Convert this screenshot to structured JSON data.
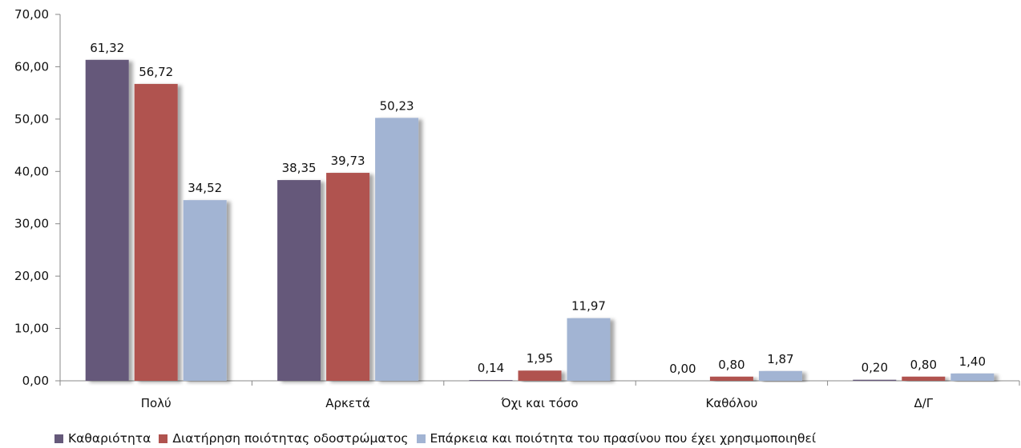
{
  "chart_data": {
    "type": "bar",
    "categories": [
      "Πολύ",
      "Αρκετά",
      "Όχι και τόσο",
      "Καθόλου",
      "Δ/Γ"
    ],
    "series": [
      {
        "name": "Καθαριότητα",
        "color": "#65597a",
        "values": [
          61.32,
          38.35,
          0.14,
          0.0,
          0.2
        ],
        "labels": [
          "61,32",
          "38,35",
          "0,14",
          "0,00",
          "0,20"
        ]
      },
      {
        "name": "Διατήρηση ποιότητας οδοστρώματος",
        "color": "#b0534f",
        "values": [
          56.72,
          39.73,
          1.95,
          0.8,
          0.8
        ],
        "labels": [
          "56,72",
          "39,73",
          "1,95",
          "0,80",
          "0,80"
        ]
      },
      {
        "name": "Επάρκεια και ποιότητα του πρασίνου που έχει χρησιμοποιηθεί",
        "color": "#a2b4d3",
        "values": [
          34.52,
          50.23,
          11.97,
          1.87,
          1.4
        ],
        "labels": [
          "34,52",
          "50,23",
          "11,97",
          "1,87",
          "1,40"
        ]
      }
    ],
    "ylim": [
      0,
      70
    ],
    "yticks": [
      "0,00",
      "10,00",
      "20,00",
      "30,00",
      "40,00",
      "50,00",
      "60,00",
      "70,00"
    ],
    "grid": false,
    "legend_position": "bottom"
  }
}
